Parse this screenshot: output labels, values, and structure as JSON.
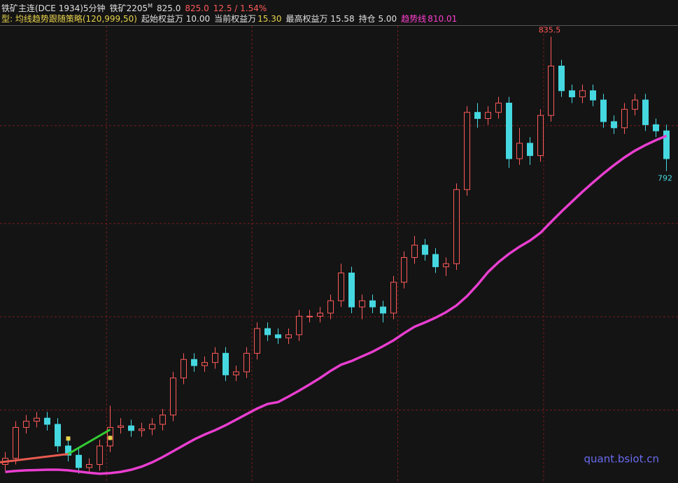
{
  "header": {
    "symbol": "铁矿主连(DCE 1934)5分钟",
    "contract": "铁矿2205",
    "contract_flag": "M",
    "ref_price": "825.0",
    "last_price": "825.0",
    "change": "12.5 / 1.54%",
    "strategy": "型: 均线趋势跟随策略(120,999,50)",
    "start_equity": "起始权益万 10.00",
    "current_equity_label": "当前权益万",
    "current_equity": "15.30",
    "max_equity": "最高权益万 15.58",
    "position": "持仓 5.00",
    "trend_label": "趋势线",
    "trend_value": "810.01"
  },
  "watermark": "quant.bsiot.cn",
  "chart_data": {
    "type": "candlestick",
    "ylim": [
      691,
      839
    ],
    "up_color": "#ff5a5a",
    "down_color": "#45d8e0",
    "grid_color": "#7a1a1a",
    "hgrid": [
      714.6,
      744.8,
      775,
      806.7
    ],
    "vgrid_x": [
      9.65,
      23.5,
      37.4,
      51.3
    ],
    "open": [
      697,
      699,
      709,
      711,
      712,
      710,
      703,
      700,
      696,
      697,
      703,
      709,
      709.5,
      708,
      708.5,
      710,
      713,
      725,
      731,
      729,
      730,
      733,
      726,
      727,
      733,
      741,
      739,
      738,
      739,
      745,
      745,
      746,
      750,
      759,
      748,
      750,
      748,
      746,
      756,
      764,
      768,
      765,
      761,
      762,
      786,
      811,
      809,
      811,
      814,
      796,
      801,
      797,
      810,
      826,
      818,
      816,
      818,
      815,
      808,
      806,
      812,
      815,
      807,
      805
    ],
    "high": [
      701,
      711,
      713,
      714,
      714,
      712,
      705,
      702,
      699,
      705,
      716,
      712,
      711.5,
      710.5,
      712,
      715,
      727,
      733,
      733,
      732,
      735,
      735,
      729,
      735,
      743,
      743,
      741,
      741,
      747,
      747,
      748,
      752,
      762,
      761,
      752,
      752,
      750,
      758,
      766,
      771,
      770,
      767,
      764,
      788,
      813,
      814,
      813,
      816,
      816,
      806,
      803,
      812,
      835.5,
      828,
      820,
      820,
      820,
      817,
      810,
      814,
      817,
      817,
      809,
      807
    ],
    "low": [
      695,
      697,
      707,
      709,
      708,
      701,
      698,
      694,
      694,
      695,
      701,
      707,
      706,
      706,
      706.5,
      708,
      711,
      723,
      727,
      727,
      728,
      724,
      724,
      725,
      731,
      737,
      736,
      736,
      737,
      743,
      743,
      744,
      748,
      746,
      744,
      746,
      743,
      744,
      754,
      762,
      763,
      759,
      758,
      760,
      784,
      806,
      807,
      809,
      793,
      794,
      794,
      795,
      808,
      816,
      814,
      814,
      813,
      806,
      804,
      804,
      810,
      805,
      803,
      792
    ],
    "close": [
      699,
      709,
      711,
      712,
      710,
      703,
      700,
      696,
      697,
      703,
      709,
      709.5,
      708,
      708.5,
      710,
      713,
      725,
      731,
      729,
      730,
      733,
      726,
      727,
      733,
      741,
      739,
      738,
      739,
      745,
      745,
      746,
      750,
      759,
      748,
      750,
      748,
      746,
      756,
      764,
      768,
      765,
      761,
      762,
      786,
      811,
      809,
      811,
      814,
      796,
      801,
      797,
      810,
      826,
      818,
      816,
      818,
      815,
      808,
      806,
      812,
      815,
      807,
      805,
      796
    ],
    "trend": {
      "color": "#e93ed0",
      "values": [
        694.6,
        694.9,
        695.1,
        695.2,
        695.3,
        695.3,
        695.1,
        694.7,
        694.3,
        694.0,
        694.2,
        694.6,
        695.3,
        696.3,
        697.7,
        699.4,
        701.3,
        703.2,
        705.1,
        706.7,
        708.1,
        709.7,
        711.5,
        713.3,
        715.1,
        716.6,
        717.2,
        719.0,
        720.9,
        722.9,
        725.0,
        727.3,
        729.3,
        730.5,
        732.0,
        733.5,
        735.3,
        737.2,
        739.5,
        741.6,
        743.0,
        744.5,
        746.3,
        748.5,
        751.5,
        755.2,
        759.3,
        762.5,
        765.2,
        767.5,
        769.5,
        772.0,
        775.5,
        778.9,
        782.1,
        785.3,
        788.3,
        791.2,
        793.9,
        796.4,
        798.6,
        800.4,
        802.0,
        803.4
      ]
    },
    "trade_lines": [
      {
        "color": "#e85a4f",
        "x": [
          -0.5,
          6
        ],
        "values": [
          697.7,
          700.4
        ]
      },
      {
        "color": "#33cc33",
        "x": [
          6,
          10
        ],
        "values": [
          700.4,
          708.3
        ]
      }
    ],
    "markers": {
      "color": "#e8d44d",
      "x": [
        6,
        10
      ],
      "values": [
        705.4,
        705.6
      ]
    },
    "extremes": [
      {
        "index": 52,
        "value": 835.5,
        "color": "#ff5a5a",
        "side": "above"
      },
      {
        "index": 63,
        "value": 792,
        "color": "#45d8e0",
        "side": "below"
      }
    ]
  }
}
